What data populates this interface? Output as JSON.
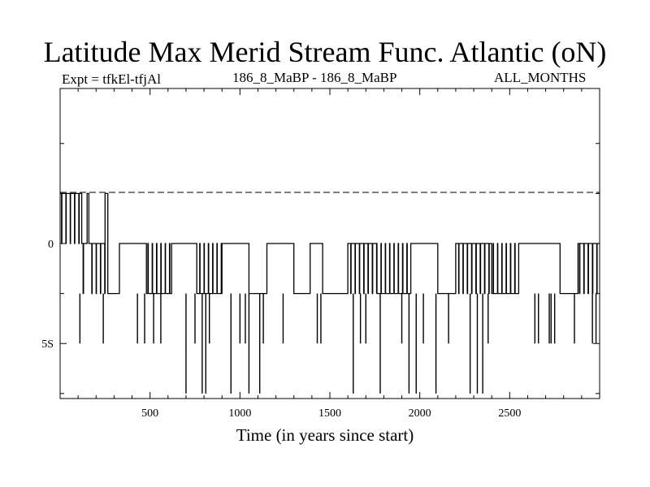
{
  "header": {
    "title": "Latitude Max Merid Stream Func. Atlantic (oN)",
    "expt_label": "Expt = tfkEl-tfjAl",
    "comparison": "186_8_MaBP - 186_8_MaBP",
    "months": "ALL_MONTHS"
  },
  "chart_data": {
    "type": "line",
    "title": "Latitude Max Merid Stream Func. Atlantic (oN)",
    "xlabel": "Time (in years since start)",
    "ylabel": "",
    "xlim": [
      0,
      3000
    ],
    "ylim": [
      -7.75,
      7.75
    ],
    "xticks": [
      500,
      1000,
      1500,
      2000,
      2500
    ],
    "xtick_labels": [
      "500",
      "1000",
      "1500",
      "2000",
      "2500"
    ],
    "yticks": [
      0,
      -5
    ],
    "ytick_labels": [
      "0",
      "5S"
    ],
    "zero_line": "dashed",
    "levels": [
      2.5,
      0,
      -2.5,
      -5,
      -7.5
    ],
    "series": [
      {
        "note": "value toggles between discrete latitude levels; segments listed as [start_year, end_year, level]",
        "segments": [
          [
            0,
            120,
            2.5
          ],
          [
            120,
            150,
            0
          ],
          [
            150,
            160,
            2.5
          ],
          [
            160,
            250,
            0
          ],
          [
            250,
            265,
            2.5
          ],
          [
            265,
            330,
            -2.5
          ],
          [
            330,
            480,
            0
          ],
          [
            480,
            620,
            -2.5
          ],
          [
            620,
            760,
            0
          ],
          [
            760,
            900,
            -2.5
          ],
          [
            900,
            1050,
            0
          ],
          [
            1050,
            1150,
            -2.5
          ],
          [
            1150,
            1300,
            0
          ],
          [
            1300,
            1390,
            -2.5
          ],
          [
            1390,
            1460,
            0
          ],
          [
            1460,
            1600,
            -2.5
          ],
          [
            1600,
            1760,
            0
          ],
          [
            1760,
            1950,
            -2.5
          ],
          [
            1950,
            2100,
            0
          ],
          [
            2100,
            2200,
            -2.5
          ],
          [
            2200,
            2400,
            0
          ],
          [
            2400,
            2550,
            -2.5
          ],
          [
            2550,
            2780,
            0
          ],
          [
            2780,
            2880,
            -2.5
          ],
          [
            2880,
            3000,
            0
          ]
        ],
        "spikes": [
          [
            110,
            -5
          ],
          [
            240,
            -5
          ],
          [
            430,
            -5
          ],
          [
            470,
            -5
          ],
          [
            520,
            -5
          ],
          [
            560,
            -5
          ],
          [
            700,
            -7.5
          ],
          [
            750,
            -5
          ],
          [
            790,
            -7.5
          ],
          [
            810,
            -7.5
          ],
          [
            830,
            -5
          ],
          [
            950,
            -7.5
          ],
          [
            1000,
            -5
          ],
          [
            1030,
            -5
          ],
          [
            1050,
            -7.5
          ],
          [
            1110,
            -7.5
          ],
          [
            1130,
            -5
          ],
          [
            1240,
            -5
          ],
          [
            1430,
            -5
          ],
          [
            1450,
            -5
          ],
          [
            1630,
            -7.5
          ],
          [
            1670,
            -5
          ],
          [
            1700,
            -5
          ],
          [
            1780,
            -7.5
          ],
          [
            1900,
            -5
          ],
          [
            1940,
            -7.5
          ],
          [
            1980,
            -7.5
          ],
          [
            2020,
            -5
          ],
          [
            2090,
            -7.5
          ],
          [
            2160,
            -5
          ],
          [
            2280,
            -7.5
          ],
          [
            2320,
            -7.5
          ],
          [
            2350,
            -7.5
          ],
          [
            2380,
            -5
          ],
          [
            2640,
            -5
          ],
          [
            2660,
            -5
          ],
          [
            2720,
            -5
          ],
          [
            2730,
            -5
          ],
          [
            2750,
            -5
          ],
          [
            2860,
            -5
          ],
          [
            2960,
            -5
          ],
          [
            2980,
            -5
          ]
        ]
      }
    ]
  }
}
